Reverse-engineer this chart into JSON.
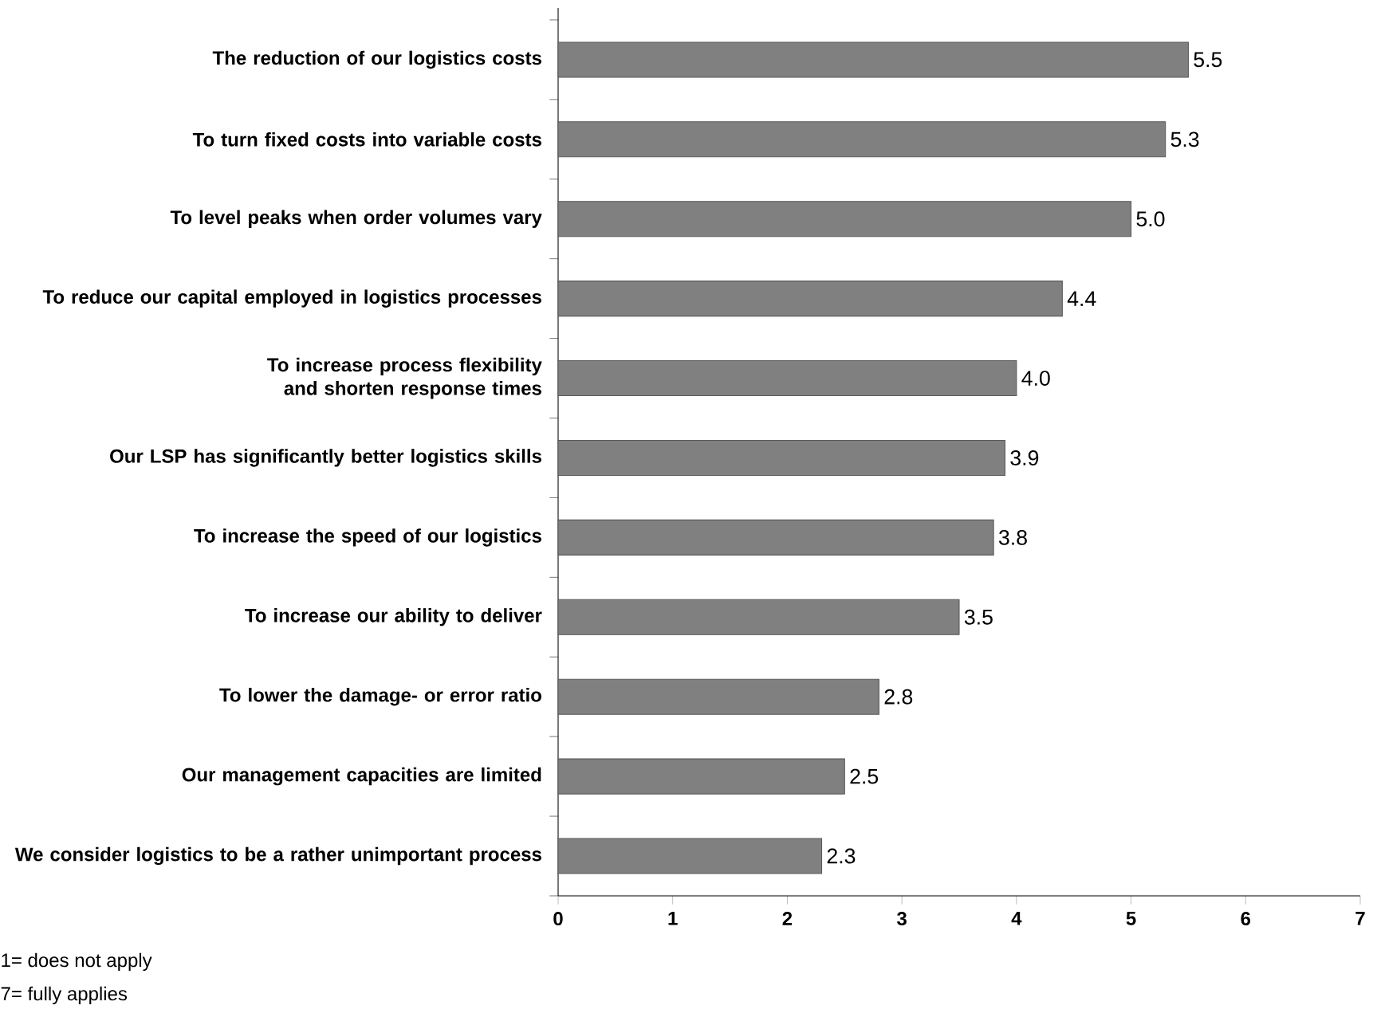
{
  "chart_data": {
    "type": "bar",
    "orientation": "horizontal",
    "categories": [
      "The reduction of our logistics costs",
      "To turn fixed costs into variable costs",
      "To level peaks when order volumes vary",
      "To reduce our capital employed in logistics processes",
      "To increase process flexibility and shorten response times",
      "Our LSP has significantly better logistics skills",
      "To increase the speed of our logistics",
      "To increase our ability to deliver",
      "To lower the damage- or error ratio",
      "Our management capacities are limited",
      "We consider logistics to be a rather unimportant process"
    ],
    "values": [
      5.5,
      5.3,
      5.0,
      4.4,
      4.0,
      3.9,
      3.8,
      3.5,
      2.8,
      2.5,
      2.3
    ],
    "value_labels": [
      "5.5",
      "5.3",
      "5.0",
      "4.4",
      "4.0",
      "3.9",
      "3.8",
      "3.5",
      "2.8",
      "2.5",
      "2.3"
    ],
    "color": "#808080",
    "xlim": [
      0,
      7
    ],
    "xticks": [
      0,
      1,
      2,
      3,
      4,
      5,
      6,
      7
    ],
    "annotations": [
      "1= does not apply",
      "7= fully applies"
    ]
  }
}
